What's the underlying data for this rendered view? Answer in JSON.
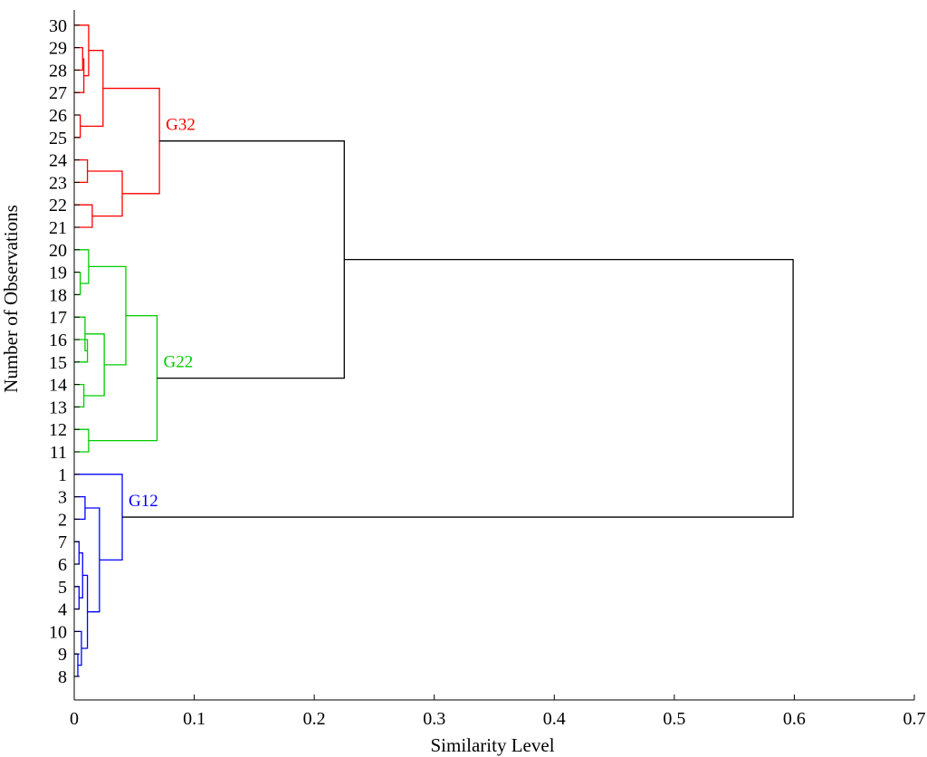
{
  "chart_data": {
    "type": "dendrogram",
    "title": "",
    "xlabel": "Similarity Level",
    "ylabel": "Number of Observations",
    "xlim": [
      0,
      0.7
    ],
    "xticks": [
      0,
      0.1,
      0.2,
      0.3,
      0.4,
      0.5,
      0.6,
      0.7
    ],
    "xtick_labels": [
      "0",
      "0.1",
      "0.2",
      "0.3",
      "0.4",
      "0.5",
      "0.6",
      "0.7"
    ],
    "grid": false,
    "leaf_order_bottom_to_top": [
      8,
      9,
      10,
      4,
      5,
      6,
      7,
      2,
      3,
      1,
      11,
      12,
      13,
      14,
      15,
      16,
      17,
      18,
      19,
      20,
      21,
      22,
      23,
      24,
      25,
      26,
      27,
      28,
      29,
      30
    ],
    "groups": [
      {
        "label": "G12",
        "color": "#0000ff",
        "members": [
          1,
          2,
          3,
          4,
          5,
          6,
          7,
          8,
          9,
          10
        ]
      },
      {
        "label": "G22",
        "color": "#00cc00",
        "members": [
          11,
          12,
          13,
          14,
          15,
          16,
          17,
          18,
          19,
          20
        ]
      },
      {
        "label": "G32",
        "color": "#ff0000",
        "members": [
          21,
          22,
          23,
          24,
          25,
          26,
          27,
          28,
          29,
          30
        ]
      }
    ],
    "links_color": "#000000",
    "merges": [
      {
        "id": "m1",
        "a": 8,
        "b": 9,
        "height": 0.003
      },
      {
        "id": "m2",
        "a": "m1",
        "b": 10,
        "height": 0.006
      },
      {
        "id": "m3",
        "a": 4,
        "b": 5,
        "height": 0.004
      },
      {
        "id": "m4",
        "a": 6,
        "b": 7,
        "height": 0.004
      },
      {
        "id": "m5",
        "a": "m3",
        "b": "m4",
        "height": 0.007
      },
      {
        "id": "m6",
        "a": "m2",
        "b": "m5",
        "height": 0.011
      },
      {
        "id": "m7",
        "a": 2,
        "b": 3,
        "height": 0.009
      },
      {
        "id": "m8",
        "a": "m7",
        "b": "m6",
        "height": 0.021
      },
      {
        "id": "m9",
        "a": 1,
        "b": "m8",
        "height": 0.04
      },
      {
        "id": "m10",
        "a": 11,
        "b": 12,
        "height": 0.012
      },
      {
        "id": "m11",
        "a": 13,
        "b": 14,
        "height": 0.008
      },
      {
        "id": "m12",
        "a": 15,
        "b": 16,
        "height": 0.011
      },
      {
        "id": "m13",
        "a": "m12",
        "b": 17,
        "height": 0.009
      },
      {
        "id": "m14",
        "a": "m11",
        "b": "m13",
        "height": 0.025
      },
      {
        "id": "m15",
        "a": 18,
        "b": 19,
        "height": 0.005
      },
      {
        "id": "m16",
        "a": "m15",
        "b": 20,
        "height": 0.012
      },
      {
        "id": "m17",
        "a": "m14",
        "b": "m16",
        "height": 0.043
      },
      {
        "id": "m18",
        "a": "m10",
        "b": "m17",
        "height": 0.069
      },
      {
        "id": "m19",
        "a": 21,
        "b": 22,
        "height": 0.015
      },
      {
        "id": "m20",
        "a": 23,
        "b": 24,
        "height": 0.011
      },
      {
        "id": "m21",
        "a": "m19",
        "b": "m20",
        "height": 0.04
      },
      {
        "id": "m22",
        "a": 25,
        "b": 26,
        "height": 0.005
      },
      {
        "id": "m23",
        "a": 28,
        "b": 29,
        "height": 0.007
      },
      {
        "id": "m24",
        "a": 27,
        "b": "m23",
        "height": 0.008
      },
      {
        "id": "m25",
        "a": "m24",
        "b": 30,
        "height": 0.012
      },
      {
        "id": "m26",
        "a": "m22",
        "b": "m25",
        "height": 0.024
      },
      {
        "id": "m27",
        "a": "m21",
        "b": "m26",
        "height": 0.071
      },
      {
        "id": "m28",
        "a": "m18",
        "b": "m27",
        "height": 0.225
      },
      {
        "id": "m29",
        "a": "m9",
        "b": "m28",
        "height": 0.599
      }
    ]
  }
}
